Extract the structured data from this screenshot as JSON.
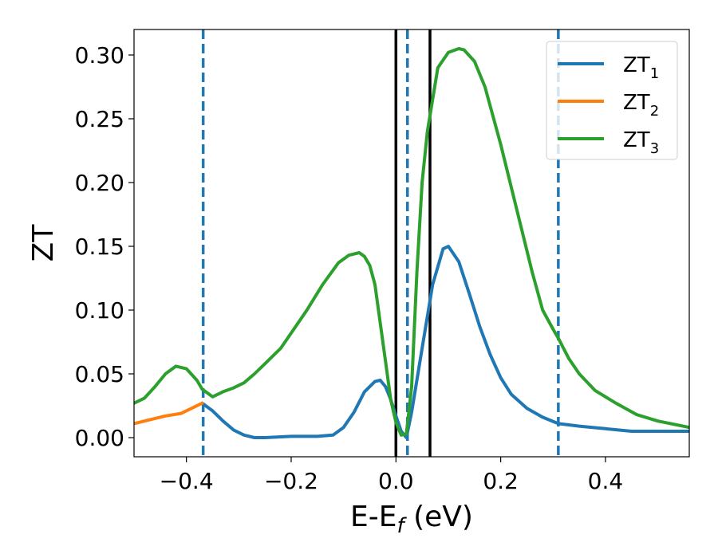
{
  "chart_data": {
    "type": "line",
    "title": "",
    "xlabel": "E-E",
    "xlabel_sub": "f",
    "xlabel_unit": " (eV)",
    "ylabel": "ZT",
    "xlim": [
      -0.5,
      0.56
    ],
    "ylim": [
      -0.015,
      0.32
    ],
    "grid": false,
    "legend_position": "top-right",
    "x_ticks": [
      -0.4,
      -0.2,
      0.0,
      0.2,
      0.4
    ],
    "x_tick_labels": [
      "−0.4",
      "−0.2",
      "0.0",
      "0.2",
      "0.4"
    ],
    "y_ticks": [
      0.0,
      0.05,
      0.1,
      0.15,
      0.2,
      0.25,
      0.3
    ],
    "y_tick_labels": [
      "0.00",
      "0.05",
      "0.10",
      "0.15",
      "0.20",
      "0.25",
      "0.30"
    ],
    "series": [
      {
        "name": "ZT",
        "sub": "1",
        "color": "#1f77b4",
        "x": [
          -0.37,
          -0.35,
          -0.33,
          -0.31,
          -0.29,
          -0.27,
          -0.25,
          -0.2,
          -0.15,
          -0.12,
          -0.1,
          -0.08,
          -0.06,
          -0.04,
          -0.03,
          -0.02,
          -0.01,
          0.0,
          0.01,
          0.02,
          0.03,
          0.05,
          0.07,
          0.09,
          0.1,
          0.12,
          0.14,
          0.16,
          0.18,
          0.2,
          0.22,
          0.25,
          0.28,
          0.31,
          0.35,
          0.4,
          0.45,
          0.5,
          0.56
        ],
        "y": [
          0.027,
          0.021,
          0.013,
          0.006,
          0.002,
          0.0,
          0.0,
          0.001,
          0.001,
          0.002,
          0.008,
          0.02,
          0.036,
          0.044,
          0.045,
          0.04,
          0.03,
          0.017,
          0.005,
          0.0,
          0.02,
          0.07,
          0.12,
          0.148,
          0.15,
          0.138,
          0.113,
          0.087,
          0.065,
          0.047,
          0.034,
          0.023,
          0.016,
          0.011,
          0.009,
          0.007,
          0.005,
          0.005,
          0.005
        ]
      },
      {
        "name": "ZT",
        "sub": "2",
        "color": "#ff7f0e",
        "x": [
          -0.5,
          -0.47,
          -0.44,
          -0.41,
          -0.39,
          -0.37
        ],
        "y": [
          0.011,
          0.014,
          0.017,
          0.019,
          0.023,
          0.027
        ]
      },
      {
        "name": "ZT",
        "sub": "3",
        "color": "#2ca02c",
        "x": [
          -0.5,
          -0.48,
          -0.46,
          -0.44,
          -0.42,
          -0.4,
          -0.38,
          -0.37,
          -0.35,
          -0.33,
          -0.31,
          -0.29,
          -0.27,
          -0.25,
          -0.22,
          -0.2,
          -0.17,
          -0.14,
          -0.11,
          -0.09,
          -0.07,
          -0.06,
          -0.05,
          -0.04,
          -0.03,
          -0.02,
          -0.01,
          0.0,
          0.01,
          0.02,
          0.03,
          0.04,
          0.05,
          0.06,
          0.08,
          0.1,
          0.12,
          0.13,
          0.15,
          0.17,
          0.2,
          0.23,
          0.26,
          0.28,
          0.3,
          0.31,
          0.33,
          0.35,
          0.38,
          0.42,
          0.46,
          0.5,
          0.56
        ],
        "y": [
          0.027,
          0.031,
          0.04,
          0.05,
          0.056,
          0.054,
          0.045,
          0.038,
          0.032,
          0.036,
          0.039,
          0.043,
          0.05,
          0.058,
          0.07,
          0.082,
          0.1,
          0.12,
          0.137,
          0.143,
          0.145,
          0.142,
          0.135,
          0.12,
          0.09,
          0.06,
          0.03,
          0.012,
          0.002,
          0.003,
          0.04,
          0.13,
          0.2,
          0.24,
          0.29,
          0.302,
          0.305,
          0.304,
          0.295,
          0.275,
          0.23,
          0.18,
          0.13,
          0.1,
          0.085,
          0.078,
          0.062,
          0.05,
          0.037,
          0.027,
          0.018,
          0.013,
          0.008
        ]
      }
    ],
    "vlines": [
      {
        "x": -0.368,
        "style": "dashed",
        "color": "#1f77b4"
      },
      {
        "x": 0.022,
        "style": "dashed",
        "color": "#1f77b4"
      },
      {
        "x": 0.31,
        "style": "dashed",
        "color": "#1f77b4"
      },
      {
        "x": 0.0,
        "style": "solid",
        "color": "#000000"
      },
      {
        "x": 0.065,
        "style": "solid",
        "color": "#000000"
      }
    ]
  }
}
